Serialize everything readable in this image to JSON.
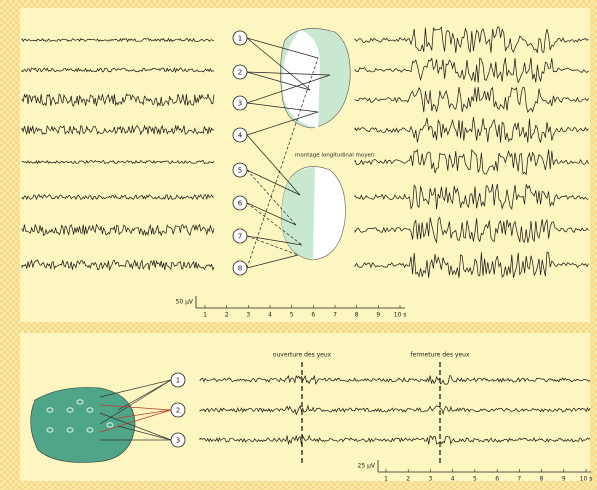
{
  "top_panel": {
    "montage_label": "montage longitudinal moyen",
    "electrodes": [
      "1",
      "2",
      "3",
      "4",
      "5",
      "6",
      "7",
      "8"
    ],
    "scale": {
      "amplitude": "50 µV",
      "ticks": [
        "1",
        "2",
        "3",
        "4",
        "5",
        "6",
        "7",
        "8",
        "9",
        "10 s"
      ]
    }
  },
  "bottom_panel": {
    "electrodes": [
      "1",
      "2",
      "3"
    ],
    "events": [
      "ouverture des yeux",
      "fermeture des yeux"
    ],
    "scale": {
      "amplitude": "25 µV",
      "ticks": [
        "1",
        "2",
        "3",
        "4",
        "5",
        "6",
        "7",
        "8",
        "9",
        "10 s"
      ]
    }
  }
}
